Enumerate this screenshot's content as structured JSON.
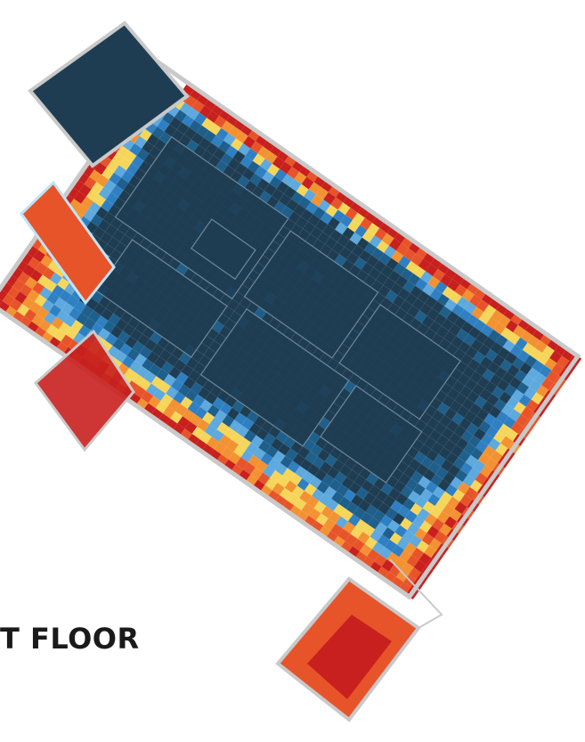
{
  "floor_label": "T FLOOR",
  "heatmap": {
    "colors": {
      "dark": "#1f3d52",
      "deep_blue": "#1f5f8b",
      "blue": "#2f80c3",
      "light_blue": "#5ea9dd",
      "yellow": "#f6d65a",
      "orange": "#f39233",
      "red_orange": "#e8542a",
      "red": "#c8201e",
      "wall": "#c9c9c9",
      "window": "#bfe3f5"
    },
    "color_scale": [
      "dark",
      "deep_blue",
      "blue",
      "light_blue",
      "yellow",
      "orange",
      "red_orange",
      "red"
    ]
  }
}
